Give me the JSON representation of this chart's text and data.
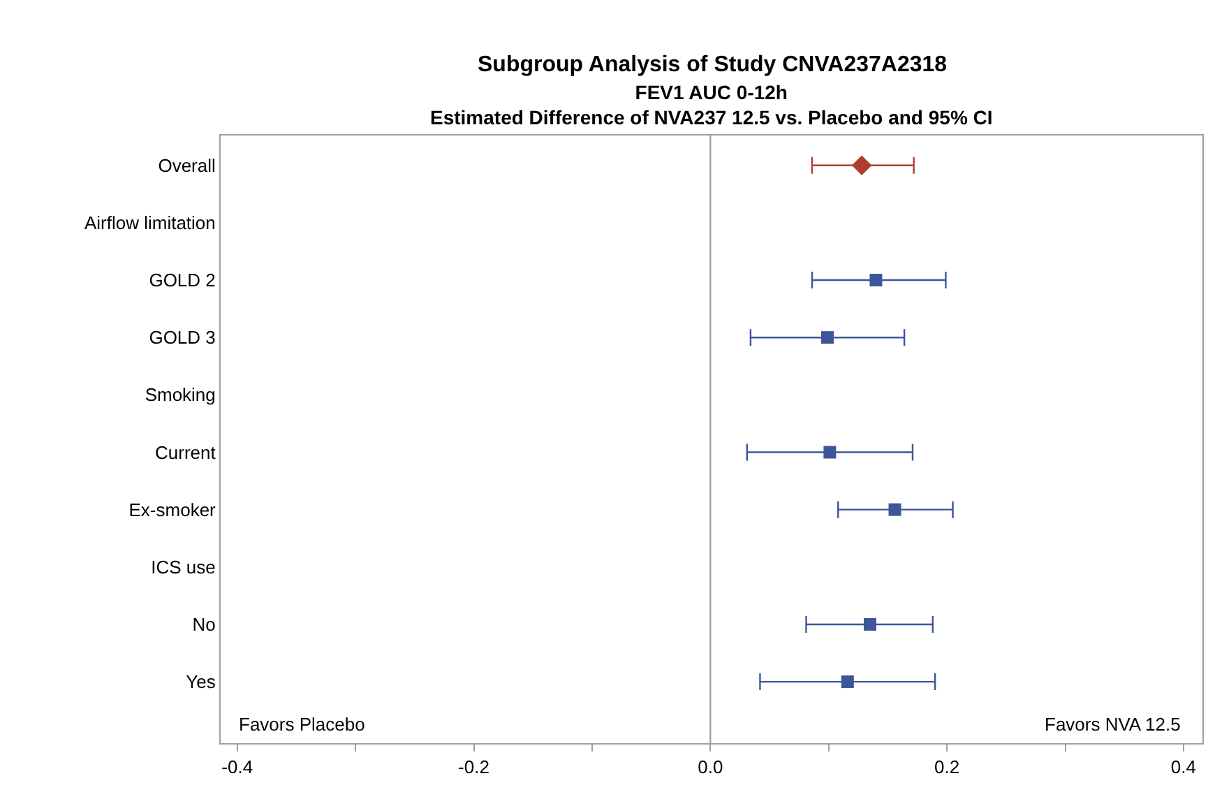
{
  "chart_data": {
    "type": "scatter",
    "orientation": "horizontal",
    "title": "Subgroup Analysis of Study CNVA237A2318",
    "subtitle": "FEV1 AUC 0-12h\nEstimated Difference of NVA237 12.5 vs. Placebo and 95% CI",
    "categories": [
      "Overall",
      "Airflow limitation",
      "GOLD 2",
      "GOLD 3",
      "Smoking",
      "Current",
      "Ex-smoker",
      "ICS use",
      "No",
      "Yes"
    ],
    "series": [
      {
        "color": "#b03e2e",
        "marker": "diamond",
        "values": [
          0.128,
          null,
          null,
          null,
          null,
          null,
          null,
          null,
          null,
          null
        ],
        "errors": [
          [
            0.086,
            0.172
          ],
          null,
          null,
          null,
          null,
          null,
          null,
          null,
          null,
          null
        ]
      },
      {
        "color": "#3e5599",
        "marker": "square",
        "values": [
          null,
          null,
          0.14,
          0.099,
          null,
          0.101,
          0.156,
          null,
          0.135,
          0.116
        ],
        "errors": [
          null,
          null,
          [
            0.086,
            0.199
          ],
          [
            0.034,
            0.164
          ],
          null,
          [
            0.031,
            0.171
          ],
          [
            0.108,
            0.205
          ],
          null,
          [
            0.081,
            0.188
          ],
          [
            0.042,
            0.19
          ]
        ]
      }
    ],
    "xlim": [
      -0.414,
      0.416
    ],
    "xticks": [
      -0.4,
      {
        "value": -0.3,
        "label": null
      },
      {
        "value": -0.2,
        "label": "-0.2"
      },
      {
        "value": -0.1,
        "label": null
      },
      {
        "value": 0,
        "label": "0.0"
      },
      {
        "value": 0.1,
        "label": null
      },
      0.2,
      {
        "value": 0.3,
        "label": null
      },
      0.4
    ],
    "ref_lines": [
      {
        "axis": "x",
        "value": 0,
        "color": "#a0a0a0"
      }
    ],
    "annotations": [
      "Favors Placebo",
      "Favors NVA 12.5"
    ],
    "grid": false
  }
}
